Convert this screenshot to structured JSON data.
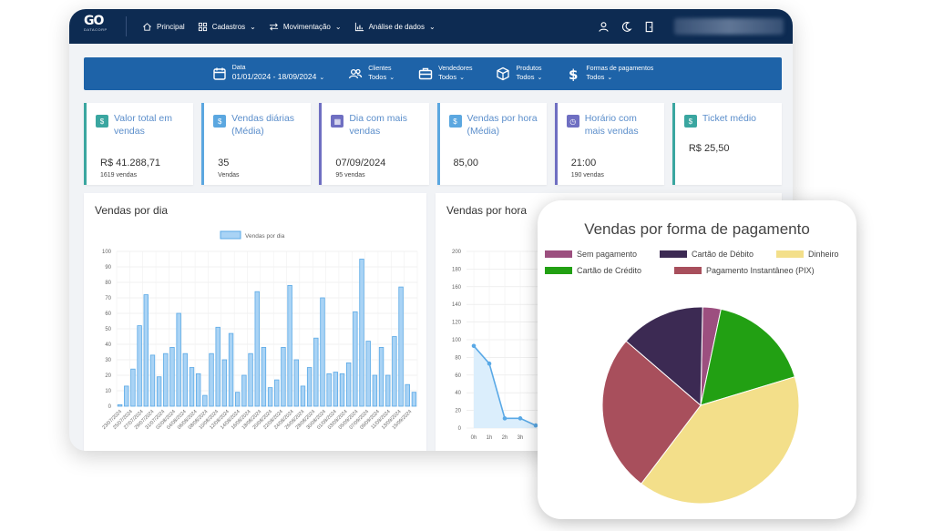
{
  "nav": {
    "logo_main": "GO",
    "logo_sub": "DATACORP",
    "items": [
      {
        "label": "Principal",
        "icon": "home-icon",
        "has_dropdown": false
      },
      {
        "label": "Cadastros",
        "icon": "grid-icon",
        "has_dropdown": true
      },
      {
        "label": "Movimentação",
        "icon": "arrows-icon",
        "has_dropdown": true
      },
      {
        "label": "Análise de dados",
        "icon": "chart-icon",
        "has_dropdown": true
      }
    ],
    "dropdown_glyph": "⌄"
  },
  "filters": {
    "date": {
      "label": "Data",
      "value": "01/01/2024 - 18/09/2024"
    },
    "clients": {
      "label": "Clientes",
      "value": "Todos"
    },
    "sellers": {
      "label": "Vendedores",
      "value": "Todos"
    },
    "products": {
      "label": "Produtos",
      "value": "Todos"
    },
    "payments": {
      "label": "Formas de pagamentos",
      "value": "Todos"
    }
  },
  "cards": [
    {
      "title": "Valor total em vendas",
      "value": "R$ 41.288,71",
      "sub": "1619 vendas",
      "color": "#3aa6a0",
      "icon_color": "#3aa6a0",
      "icon": "dollar-icon"
    },
    {
      "title": "Vendas diárias (Média)",
      "value": "35",
      "sub": "Vendas",
      "color": "#5ba7e0",
      "icon_color": "#5ba7e0",
      "icon": "dollar-icon"
    },
    {
      "title": "Dia com mais vendas",
      "value": "07/09/2024",
      "sub": "95 vendas",
      "color": "#6f6fc2",
      "icon_color": "#6f6fc2",
      "icon": "calendar-icon"
    },
    {
      "title": "Vendas por hora (Média)",
      "value": "85,00",
      "sub": "",
      "color": "#5ba7e0",
      "icon_color": "#5ba7e0",
      "icon": "dollar-icon"
    },
    {
      "title": "Horário com mais vendas",
      "value": "21:00",
      "sub": "190 vendas",
      "color": "#6f6fc2",
      "icon_color": "#6f6fc2",
      "icon": "clock-icon"
    },
    {
      "title": "Ticket médio",
      "value": "R$ 25,50",
      "sub": "",
      "color": "#3aa6a0",
      "icon_color": "#3aa6a0",
      "icon": "dollar-icon"
    }
  ],
  "panels": {
    "daily_title": "Vendas por dia",
    "hourly_title": "Vendas por hora"
  },
  "chart_data": [
    {
      "type": "bar",
      "title": "Vendas por dia",
      "legend": "Vendas por dia",
      "ylim": [
        0,
        100
      ],
      "yticks": [
        0,
        10,
        20,
        30,
        40,
        50,
        60,
        70,
        80,
        90,
        100
      ],
      "xticks": [
        "23/07/2024",
        "25/07/2024",
        "27/07/2024",
        "29/07/2024",
        "31/07/2024",
        "02/08/2024",
        "04/08/2024",
        "06/08/2024",
        "08/08/2024",
        "10/08/2024",
        "12/08/2024",
        "14/08/2024",
        "16/08/2024",
        "18/08/2024",
        "20/08/2024",
        "22/08/2024",
        "24/08/2024",
        "26/08/2024",
        "28/08/2024",
        "30/08/2024",
        "01/09/2024",
        "03/09/2024",
        "05/09/2024",
        "07/09/2024",
        "09/09/2024",
        "11/09/2024",
        "13/09/2024",
        "15/09/2024"
      ],
      "values": [
        1,
        13,
        24,
        52,
        72,
        33,
        19,
        34,
        38,
        60,
        34,
        25,
        21,
        7,
        34,
        51,
        30,
        47,
        9,
        20,
        34,
        74,
        38,
        12,
        17,
        38,
        78,
        30,
        13,
        25,
        44,
        70,
        21,
        22,
        21,
        28,
        61,
        95,
        42,
        20,
        38,
        20,
        45,
        77,
        14,
        9
      ],
      "color": "#a9d3f5",
      "border": "#5aa9e6"
    },
    {
      "type": "line",
      "title": "Vendas por hora",
      "ylim": [
        0,
        200
      ],
      "yticks": [
        0,
        20,
        40,
        60,
        80,
        100,
        120,
        140,
        160,
        180,
        200
      ],
      "xticks": [
        "0h",
        "1h",
        "2h",
        "3h"
      ],
      "x": [
        "0h",
        "1h",
        "2h",
        "3h",
        "4h"
      ],
      "values": [
        93,
        73,
        11,
        11,
        3
      ],
      "color": "#5aa9e6"
    },
    {
      "type": "pie",
      "title": "Vendas por forma de pagamento",
      "labels": [
        "Sem pagamento",
        "Cartão de Débito",
        "Dinheiro",
        "Cartão de Crédito",
        "Pagamento Instantâneo (PIX)"
      ],
      "colors": [
        "#9c4f7f",
        "#3c2a53",
        "#f3df8a",
        "#22a013",
        "#a84f5c"
      ],
      "order": [
        0,
        3,
        2,
        4,
        1
      ],
      "values": [
        3,
        14,
        40,
        17,
        26
      ]
    }
  ]
}
